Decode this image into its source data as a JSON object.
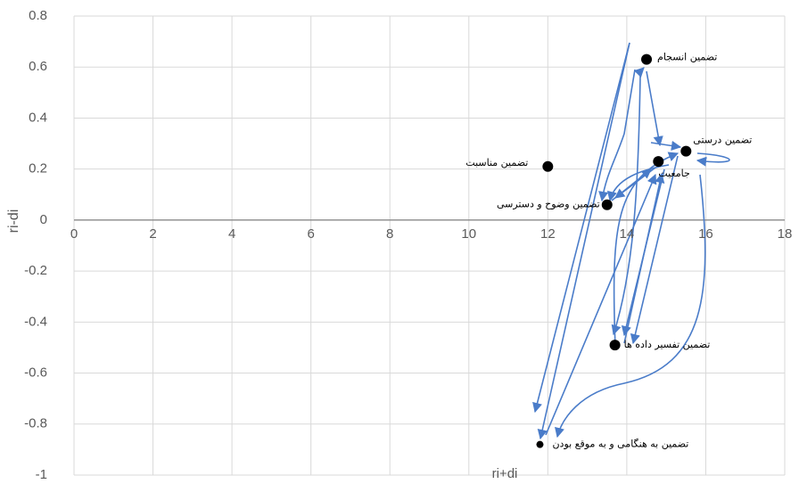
{
  "chart_data": {
    "type": "scatter",
    "x_label": "ri+di",
    "y_label": "ri-di",
    "xlim": [
      0,
      18
    ],
    "xticks": [
      0,
      2,
      4,
      6,
      8,
      10,
      12,
      14,
      16,
      18
    ],
    "ylim": [
      -1,
      0.8
    ],
    "yticks": [
      -1,
      -0.8,
      -0.6,
      -0.4,
      -0.2,
      0,
      0.2,
      0.4,
      0.6,
      0.8
    ],
    "grid": true,
    "color": "#000000",
    "points": [
      {
        "label": "تضمین انسجام",
        "x": 14.5,
        "y": 0.63
      },
      {
        "label": "تضمین درستی",
        "x": 15.5,
        "y": 0.27
      },
      {
        "label": "جامعیت",
        "x": 14.8,
        "y": 0.23
      },
      {
        "label": "تضمین مناسبت",
        "x": 12,
        "y": 0.21
      },
      {
        "label": "تضمین وضوح و دسترسی",
        "x": 13.5,
        "y": 0.06
      },
      {
        "label": "تضمین تفسیر داده ها",
        "x": 13.7,
        "y": -0.49
      },
      {
        "label": "تضمین به هنگامی و به موقع بودن",
        "x": 11.8,
        "y": -0.88
      }
    ]
  }
}
